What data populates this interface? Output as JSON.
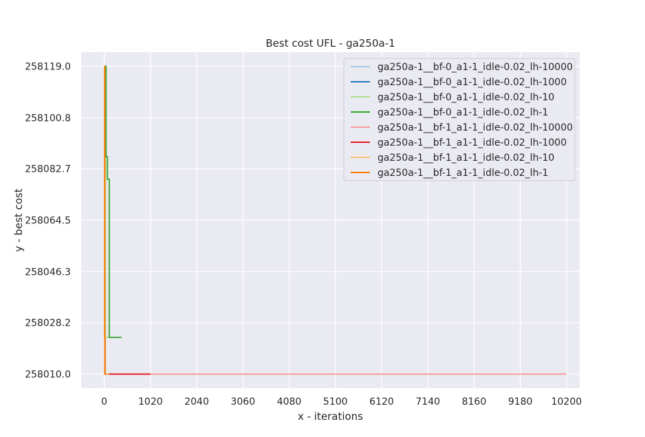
{
  "chart_data": {
    "type": "line",
    "title": "Best cost UFL - ga250a-1",
    "xlabel": "x - iterations",
    "ylabel": "y - best cost",
    "xlim": [
      -510,
      10490
    ],
    "ylim": [
      258005,
      258124
    ],
    "xticks": [
      0,
      1020,
      2040,
      3060,
      4080,
      5100,
      6120,
      7140,
      8160,
      9180,
      10200
    ],
    "yticks": [
      258010.0,
      258028.2,
      258046.3,
      258064.5,
      258082.7,
      258100.8,
      258119.0
    ],
    "ytick_labels": [
      "258010.0",
      "258028.2",
      "258046.3",
      "258064.5",
      "258082.7",
      "258100.8",
      "258119.0"
    ],
    "grid": true,
    "legend_position": "top-right",
    "series": [
      {
        "name": "ga250a-1__bf-0_a1-1_idle-0.02_lh-10000",
        "color": "#a6cee3",
        "points": [
          [
            0,
            258119.0
          ],
          [
            20,
            258119.0
          ],
          [
            20,
            258010.0
          ],
          [
            100,
            258010.0
          ]
        ]
      },
      {
        "name": "ga250a-1__bf-0_a1-1_idle-0.02_lh-1000",
        "color": "#1f78b4",
        "points": [
          [
            0,
            258119.0
          ],
          [
            20,
            258119.0
          ],
          [
            20,
            258010.0
          ],
          [
            100,
            258010.0
          ]
        ]
      },
      {
        "name": "ga250a-1__bf-0_a1-1_idle-0.02_lh-10",
        "color": "#b2df8a",
        "points": [
          [
            0,
            258119.0
          ],
          [
            30,
            258119.0
          ],
          [
            30,
            258023.0
          ],
          [
            100,
            258023.0
          ]
        ]
      },
      {
        "name": "ga250a-1__bf-0_a1-1_idle-0.02_lh-1",
        "color": "#33a02c",
        "points": [
          [
            0,
            258119.0
          ],
          [
            40,
            258119.0
          ],
          [
            40,
            258087.0
          ],
          [
            70,
            258087.0
          ],
          [
            70,
            258079.0
          ],
          [
            110,
            258079.0
          ],
          [
            110,
            258023.0
          ],
          [
            380,
            258023.0
          ]
        ]
      },
      {
        "name": "ga250a-1__bf-1_a1-1_idle-0.02_lh-10000",
        "color": "#fb9a99",
        "points": [
          [
            0,
            258119.0
          ],
          [
            10,
            258119.0
          ],
          [
            10,
            258010.0
          ],
          [
            10200,
            258010.0
          ]
        ]
      },
      {
        "name": "ga250a-1__bf-1_a1-1_idle-0.02_lh-1000",
        "color": "#e31a1c",
        "points": [
          [
            0,
            258119.0
          ],
          [
            10,
            258119.0
          ],
          [
            10,
            258010.0
          ],
          [
            1020,
            258010.0
          ]
        ]
      },
      {
        "name": "ga250a-1__bf-1_a1-1_idle-0.02_lh-10",
        "color": "#fdbf6f",
        "points": [
          [
            0,
            258119.0
          ],
          [
            10,
            258119.0
          ],
          [
            10,
            258010.0
          ],
          [
            100,
            258010.0
          ]
        ]
      },
      {
        "name": "ga250a-1__bf-1_a1-1_idle-0.02_lh-1",
        "color": "#ff7f00",
        "points": [
          [
            0,
            258119.0
          ],
          [
            10,
            258119.0
          ],
          [
            10,
            258023.0
          ],
          [
            20,
            258023.0
          ],
          [
            20,
            258010.0
          ],
          [
            60,
            258010.0
          ]
        ]
      }
    ]
  }
}
